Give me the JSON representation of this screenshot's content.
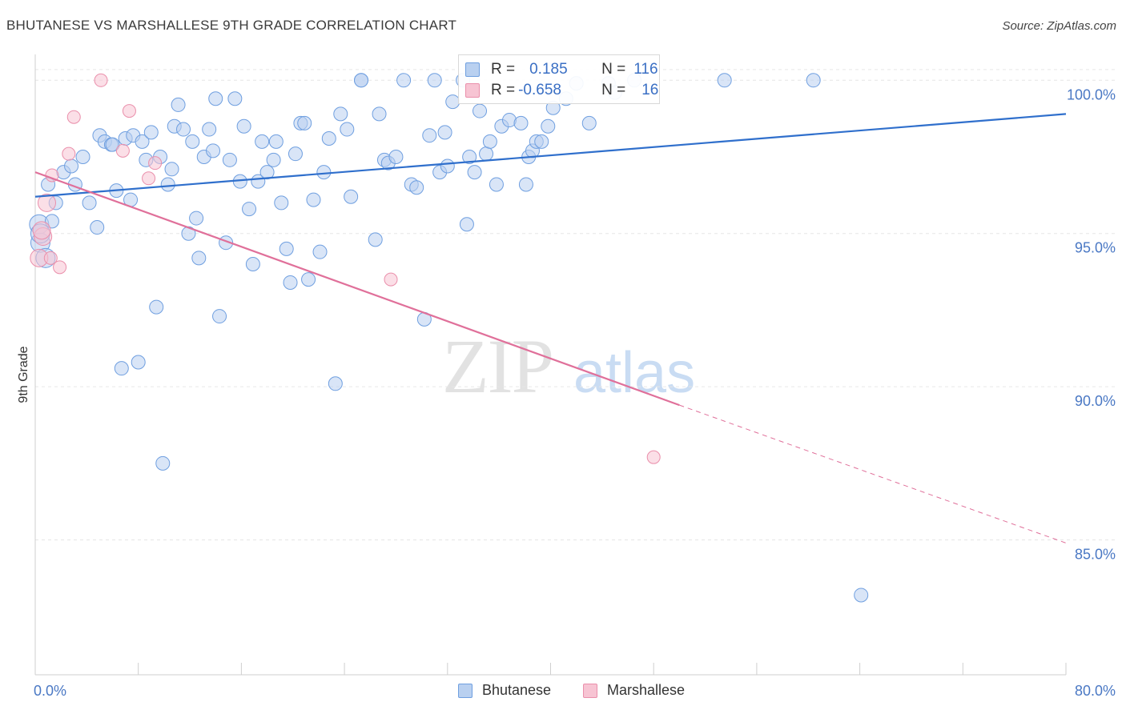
{
  "title": "BHUTANESE VS MARSHALLESE 9TH GRADE CORRELATION CHART",
  "source": "Source: ZipAtlas.com",
  "watermark": {
    "zip": "ZIP",
    "atlas": "atlas"
  },
  "legend": {
    "rows": [
      {
        "r_label": "R =",
        "r_value": "0.185",
        "n_label": "N =",
        "n_value": "116"
      },
      {
        "r_label": "R =",
        "r_value": "-0.658",
        "n_label": "N =",
        "n_value": "16"
      }
    ]
  },
  "bottom_legend": {
    "series1": "Bhutanese",
    "series2": "Marshallese"
  },
  "colors": {
    "blue_fill": "#b9d0f0",
    "blue_stroke": "#6f9fe0",
    "blue_line": "#2f6fcc",
    "pink_fill": "#f7c4d3",
    "pink_stroke": "#ea8fab",
    "pink_line": "#e0709a",
    "grid": "#e6e6e6",
    "axis_text": "#4a78c4"
  },
  "chart_data": {
    "type": "scatter",
    "title": "BHUTANESE VS MARSHALLESE 9TH GRADE CORRELATION CHART",
    "xlabel": "",
    "ylabel": "9th Grade",
    "xlim": [
      0,
      80
    ],
    "ylim": [
      80.6,
      101.0
    ],
    "x_ticks": [
      0,
      8,
      16,
      24,
      32,
      40,
      48,
      56,
      64,
      72,
      80
    ],
    "x_tick_labels": {
      "0": "0.0%",
      "80": "80.0%"
    },
    "y_ticks": [
      85,
      90,
      95,
      100
    ],
    "y_tick_labels": [
      "85.0%",
      "90.0%",
      "95.0%",
      "100.0%"
    ],
    "grid": true,
    "legend_position": "top-center",
    "series": [
      {
        "name": "Bhutanese",
        "color": "#6f9fe0",
        "trend": {
          "x": [
            0,
            80
          ],
          "y": [
            96.2,
            98.9
          ]
        },
        "points": [
          [
            0.3,
            95.3
          ],
          [
            0.4,
            94.7
          ],
          [
            0.4,
            95.0
          ],
          [
            0.8,
            94.2
          ],
          [
            1.0,
            96.6
          ],
          [
            1.3,
            95.4
          ],
          [
            1.6,
            96.0
          ],
          [
            2.2,
            97.0
          ],
          [
            2.8,
            97.2
          ],
          [
            3.1,
            96.6
          ],
          [
            3.7,
            97.5
          ],
          [
            4.2,
            96.0
          ],
          [
            4.8,
            95.2
          ],
          [
            5.0,
            98.2
          ],
          [
            5.4,
            98.0
          ],
          [
            5.9,
            97.9
          ],
          [
            6.3,
            96.4
          ],
          [
            6.7,
            90.6
          ],
          [
            7.0,
            98.1
          ],
          [
            7.4,
            96.1
          ],
          [
            7.6,
            98.2
          ],
          [
            8.0,
            90.8
          ],
          [
            8.3,
            98.0
          ],
          [
            8.6,
            97.4
          ],
          [
            9.0,
            98.3
          ],
          [
            9.4,
            92.6
          ],
          [
            9.7,
            97.5
          ],
          [
            9.9,
            87.5
          ],
          [
            10.3,
            96.6
          ],
          [
            10.6,
            97.1
          ],
          [
            10.8,
            98.5
          ],
          [
            11.1,
            99.2
          ],
          [
            11.5,
            98.4
          ],
          [
            11.9,
            95.0
          ],
          [
            12.2,
            98.0
          ],
          [
            12.5,
            95.5
          ],
          [
            12.7,
            94.2
          ],
          [
            13.1,
            97.5
          ],
          [
            13.5,
            98.4
          ],
          [
            13.8,
            97.7
          ],
          [
            14.0,
            99.4
          ],
          [
            14.3,
            92.3
          ],
          [
            14.8,
            94.7
          ],
          [
            15.1,
            97.4
          ],
          [
            15.5,
            99.4
          ],
          [
            15.9,
            96.7
          ],
          [
            16.2,
            98.5
          ],
          [
            16.6,
            95.8
          ],
          [
            16.9,
            94.0
          ],
          [
            17.3,
            96.7
          ],
          [
            17.6,
            98.0
          ],
          [
            18.0,
            97.0
          ],
          [
            18.5,
            97.4
          ],
          [
            18.7,
            98.0
          ],
          [
            19.1,
            96.0
          ],
          [
            19.5,
            94.5
          ],
          [
            19.8,
            93.4
          ],
          [
            20.2,
            97.6
          ],
          [
            20.6,
            98.6
          ],
          [
            20.9,
            98.6
          ],
          [
            21.2,
            93.5
          ],
          [
            21.6,
            96.1
          ],
          [
            22.1,
            94.4
          ],
          [
            22.4,
            97.0
          ],
          [
            22.8,
            98.1
          ],
          [
            23.3,
            90.1
          ],
          [
            23.7,
            98.9
          ],
          [
            24.2,
            98.4
          ],
          [
            24.5,
            96.2
          ],
          [
            25.3,
            100.0
          ],
          [
            25.3,
            100.0
          ],
          [
            26.4,
            94.8
          ],
          [
            26.7,
            98.9
          ],
          [
            27.1,
            97.4
          ],
          [
            27.4,
            97.3
          ],
          [
            28.6,
            100.0
          ],
          [
            29.2,
            96.6
          ],
          [
            29.6,
            96.5
          ],
          [
            30.2,
            92.2
          ],
          [
            30.6,
            98.2
          ],
          [
            31.0,
            100.0
          ],
          [
            31.4,
            97.0
          ],
          [
            31.8,
            98.3
          ],
          [
            32.0,
            97.2
          ],
          [
            32.4,
            99.3
          ],
          [
            33.2,
            100.0
          ],
          [
            33.5,
            95.3
          ],
          [
            33.7,
            97.5
          ],
          [
            34.1,
            97.0
          ],
          [
            34.5,
            99.0
          ],
          [
            35.0,
            97.6
          ],
          [
            35.3,
            98.0
          ],
          [
            35.8,
            96.6
          ],
          [
            36.2,
            98.5
          ],
          [
            36.8,
            98.7
          ],
          [
            37.7,
            98.6
          ],
          [
            38.1,
            96.6
          ],
          [
            38.3,
            97.5
          ],
          [
            38.6,
            97.7
          ],
          [
            38.9,
            98.0
          ],
          [
            39.3,
            98.0
          ],
          [
            39.8,
            98.5
          ],
          [
            40.2,
            99.1
          ],
          [
            41.2,
            99.4
          ],
          [
            42.0,
            99.9
          ],
          [
            43.0,
            98.6
          ],
          [
            44.5,
            99.9
          ],
          [
            45.0,
            99.6
          ],
          [
            46.5,
            100.0
          ],
          [
            53.5,
            100.0
          ],
          [
            60.4,
            100.0
          ],
          [
            64.1,
            83.2
          ],
          [
            28.0,
            97.5
          ],
          [
            6.0,
            97.9
          ]
        ]
      },
      {
        "name": "Marshallese",
        "color": "#ea8fab",
        "trend": {
          "x": [
            0,
            50
          ],
          "y": [
            97.0,
            89.4
          ]
        },
        "trend_dashed": {
          "x": [
            50,
            80
          ],
          "y": [
            89.4,
            84.9
          ]
        },
        "points": [
          [
            0.3,
            94.2
          ],
          [
            0.6,
            94.9
          ],
          [
            1.2,
            94.2
          ],
          [
            0.9,
            96.0
          ],
          [
            1.3,
            96.9
          ],
          [
            1.9,
            93.9
          ],
          [
            2.6,
            97.6
          ],
          [
            3.0,
            98.8
          ],
          [
            5.1,
            100.0
          ],
          [
            6.8,
            97.7
          ],
          [
            7.3,
            99.0
          ],
          [
            8.8,
            96.8
          ],
          [
            9.3,
            97.3
          ],
          [
            27.6,
            93.5
          ],
          [
            48.0,
            87.7
          ],
          [
            0.5,
            95.1
          ]
        ]
      }
    ]
  }
}
